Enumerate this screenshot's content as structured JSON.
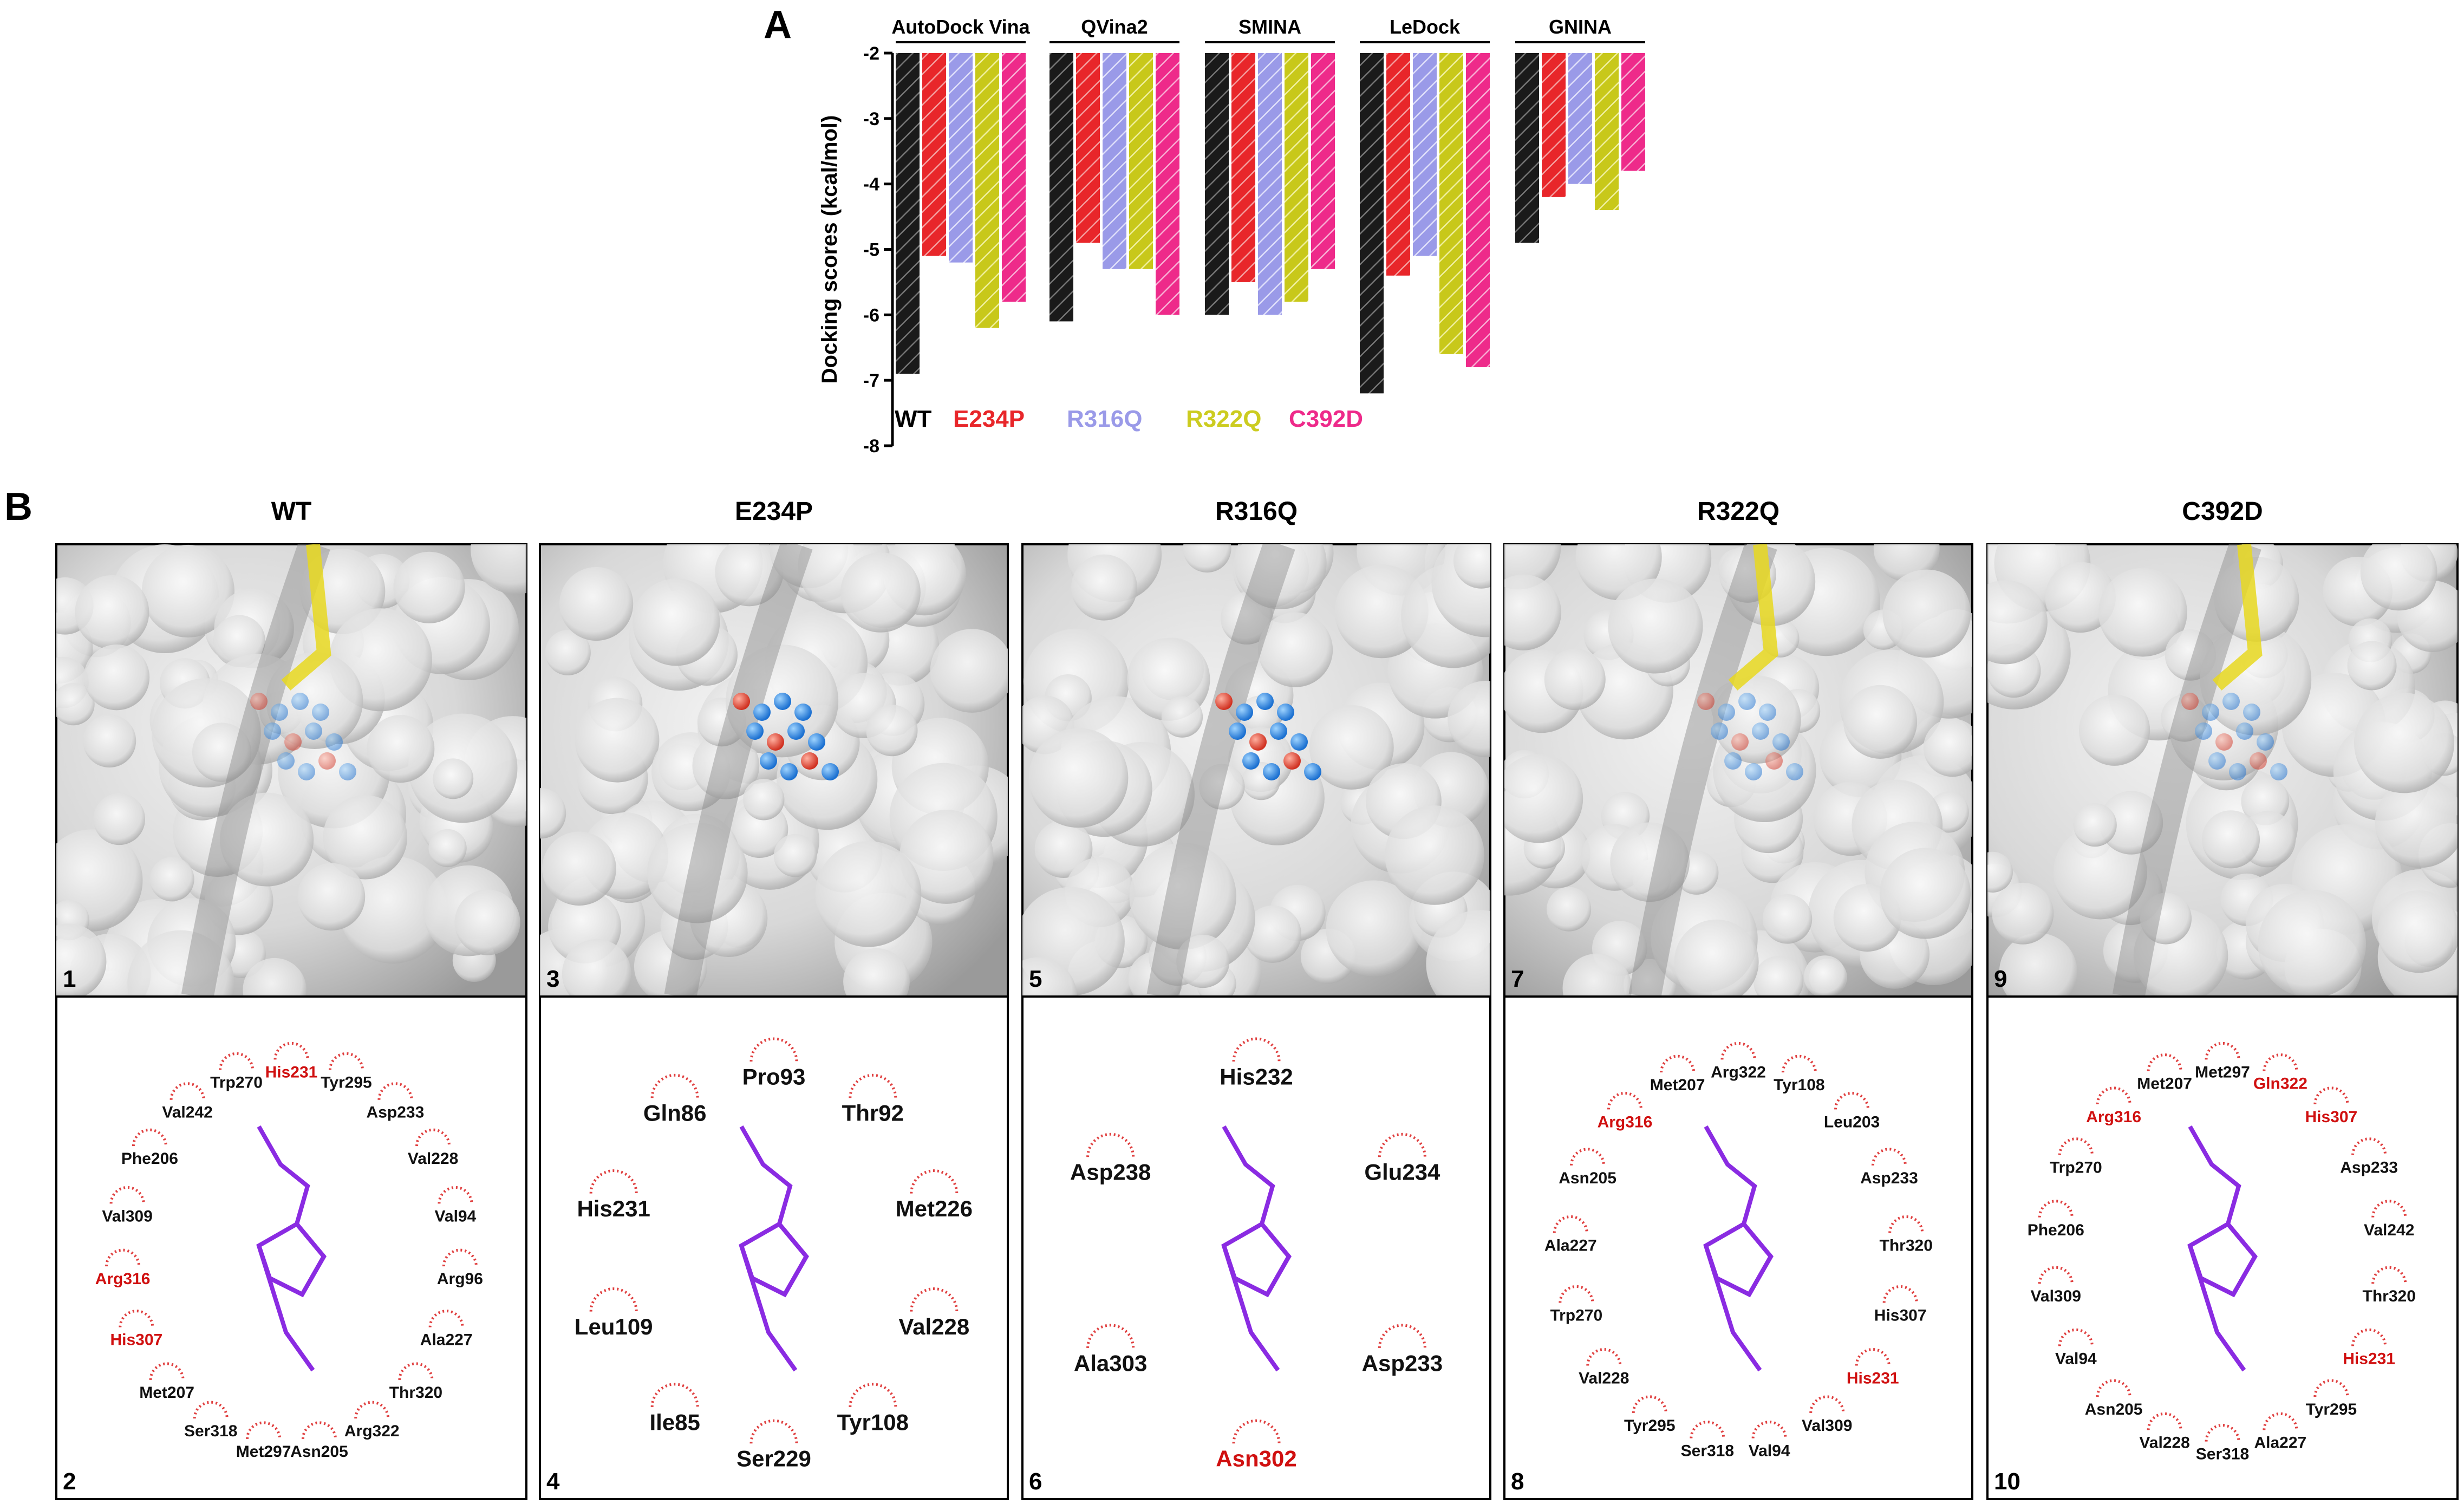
{
  "panel_a_label": "A",
  "panel_b_label": "B",
  "chart_data": {
    "type": "bar",
    "title": "",
    "ylabel": "Docking scores (kcal/mol)",
    "xlabel": "",
    "ylim": [
      -8,
      -2
    ],
    "yticks": [
      "-2",
      "-3",
      "-4",
      "-5",
      "-6",
      "-7",
      "-8"
    ],
    "grid": false,
    "legend_position": "bottom-left",
    "categories": [
      "AutoDock Vina",
      "QVina2",
      "SMINA",
      "LeDock",
      "GNINA"
    ],
    "series": [
      {
        "name": "WT",
        "color": "#000000",
        "values": [
          -6.9,
          -6.1,
          -6.0,
          -7.2,
          -4.9
        ]
      },
      {
        "name": "E234P",
        "color": "#e8262a",
        "values": [
          -5.1,
          -4.9,
          -5.5,
          -5.4,
          -4.2
        ]
      },
      {
        "name": "R316Q",
        "color": "#9a9ae8",
        "values": [
          -5.2,
          -5.3,
          -6.0,
          -5.1,
          -4.0
        ]
      },
      {
        "name": "R322Q",
        "color": "#cccc20",
        "values": [
          -6.2,
          -5.3,
          -5.8,
          -6.6,
          -4.4
        ]
      },
      {
        "name": "C392D",
        "color": "#ee2a8a",
        "values": [
          -5.8,
          -6.0,
          -5.3,
          -6.8,
          -3.8
        ]
      }
    ]
  },
  "structures": {
    "headers": [
      "WT",
      "E234P",
      "R316Q",
      "R322Q",
      "C392D"
    ],
    "top_numbers": [
      "1",
      "3",
      "5",
      "7",
      "9"
    ],
    "bottom_numbers": [
      "2",
      "4",
      "6",
      "8",
      "10"
    ],
    "residues": [
      [
        "His231",
        "Tyr295",
        "Asp233",
        "Val228",
        "Val94",
        "Arg96",
        "Ala227",
        "Thr320",
        "Arg322",
        "Asn205",
        "Met297",
        "Ser318",
        "Met207",
        "His307",
        "Arg316",
        "Val309",
        "Phe206",
        "Val242",
        "Trp270"
      ],
      [
        "Pro93",
        "Thr92",
        "Met226",
        "Val228",
        "Tyr108",
        "Ser229",
        "Ile85",
        "Leu109",
        "His231",
        "Gln86"
      ],
      [
        "His232",
        "Glu234",
        "Asp233",
        "Asn302",
        "Ala303",
        "Asp238"
      ],
      [
        "Arg322",
        "Tyr108",
        "Leu203",
        "Asp233",
        "Thr320",
        "His307",
        "His231",
        "Val309",
        "Val94",
        "Ser318",
        "Tyr295",
        "Val228",
        "Trp270",
        "Ala227",
        "Asn205",
        "Arg316",
        "Met207"
      ],
      [
        "Met297",
        "Gln322",
        "His307",
        "Asp233",
        "Val242",
        "Thr320",
        "His231",
        "Tyr295",
        "Ala227",
        "Ser318",
        "Val228",
        "Asn205",
        "Val94",
        "Val309",
        "Phe206",
        "Trp270",
        "Arg316",
        "Met207"
      ]
    ],
    "red_residues": [
      [
        "His231",
        "His307",
        "Arg316"
      ],
      [],
      [
        "Asn302"
      ],
      [
        "His231",
        "Arg316"
      ],
      [
        "Gln322",
        "His307",
        "His231",
        "Arg316"
      ]
    ]
  }
}
